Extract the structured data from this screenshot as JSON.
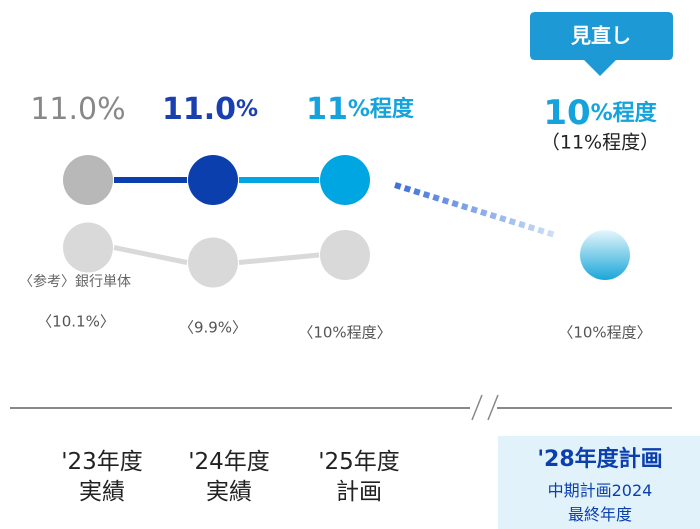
{
  "chart_data": {
    "type": "line",
    "categories": [
      "'23年度\n実績",
      "'24年度\n実績",
      "'25年度\n計画",
      "'28年度計画"
    ],
    "category_note": "中期計画2024\n最終年度",
    "badge": "見直し",
    "note": "（11%程度）",
    "series": [
      {
        "values": [
          11.0,
          11.0,
          11,
          10
        ],
        "value_labels": [
          "11.0%",
          "11.0%",
          "11%程度",
          "10%程度"
        ],
        "colors": [
          "#b8b8b8",
          "#0b3fae",
          "#00a6e2",
          "#4fc0e8"
        ],
        "label_colors": [
          "#888888",
          "#1a3fae",
          "#14a3dc",
          "#14a3dc"
        ]
      },
      {
        "name": "〈参考〉銀行単体",
        "values": [
          10.1,
          9.9,
          10,
          10
        ],
        "value_labels": [
          "〈10.1%〉",
          "〈9.9%〉",
          "〈10%程度〉",
          "〈10%程度〉"
        ],
        "color": "#d9d9d9"
      }
    ]
  }
}
